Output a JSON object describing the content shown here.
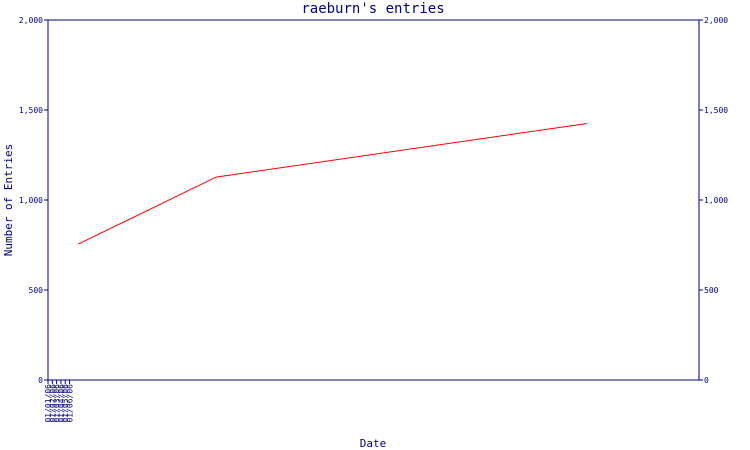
{
  "chart_data": {
    "type": "line",
    "title": "raeburn's entries",
    "xlabel": "Date",
    "ylabel": "Number of Entries",
    "ylim": [
      0,
      2000
    ],
    "y_ticks": [
      "0",
      "500",
      "1,000",
      "1,500",
      "2,000"
    ],
    "x_ticks": [
      "01/01/06",
      "01/02/06",
      "01/03/06",
      "01/04/06",
      "01/05/06",
      "01/06/06"
    ],
    "xlim": [
      "2006-01-01",
      "2006-06-01"
    ],
    "grid": false,
    "series": [
      {
        "color": "#ff0000",
        "x": [
          "2006-01-08",
          "2006-02-09",
          "2006-05-06"
        ],
        "y": [
          755,
          1127,
          1425
        ]
      }
    ],
    "colors": {
      "axis": "#000080",
      "line": "#ff0000"
    }
  }
}
